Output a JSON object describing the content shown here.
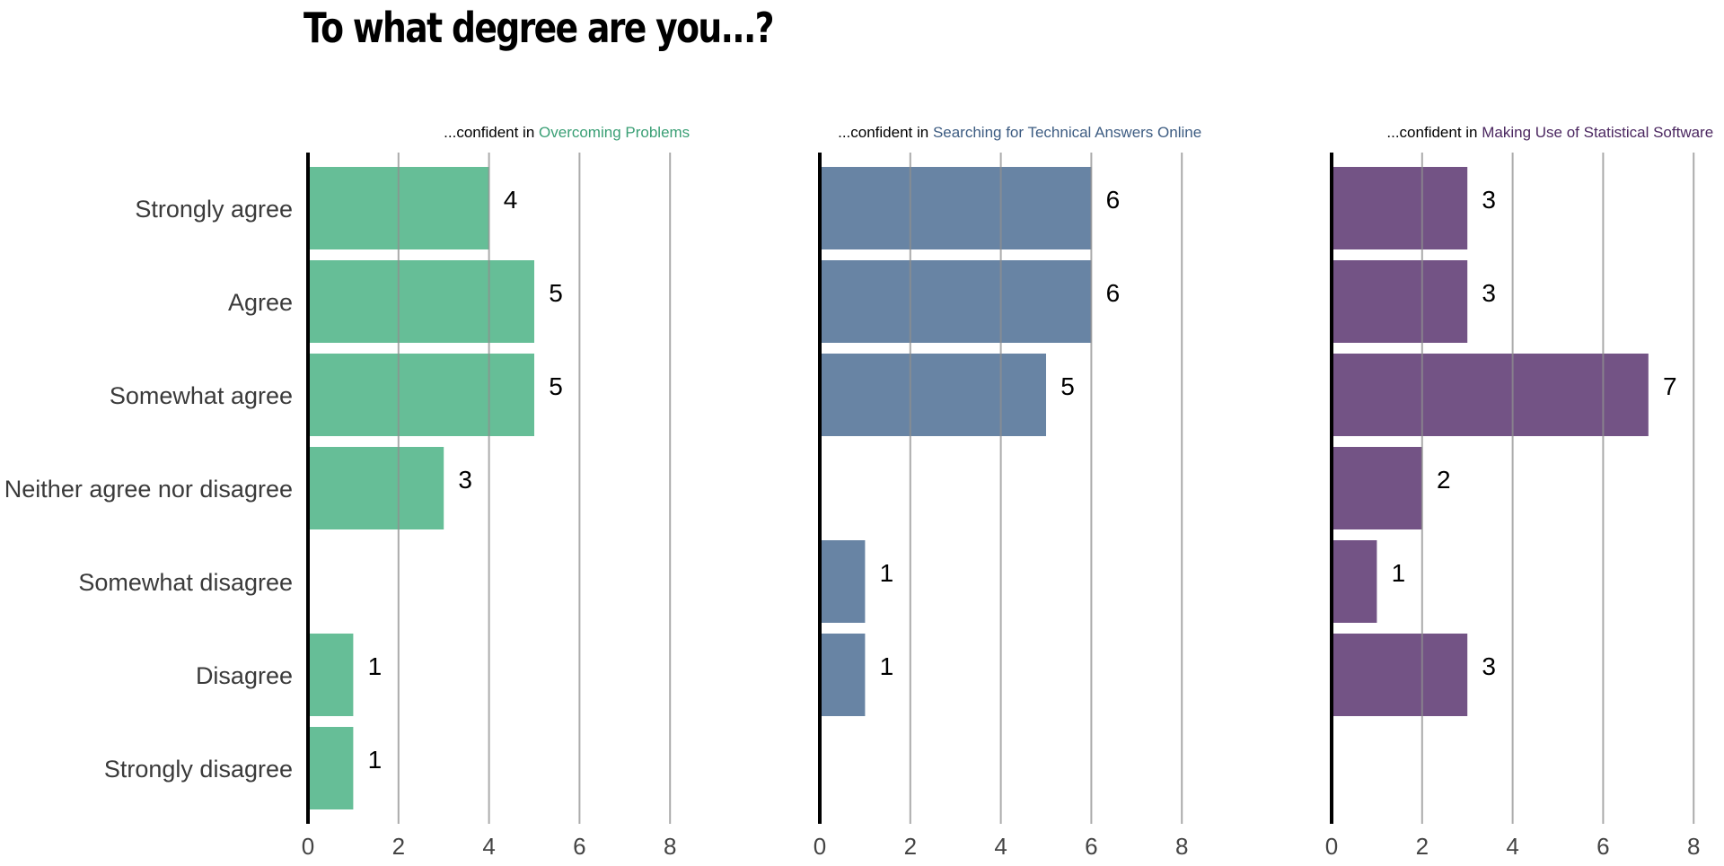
{
  "title": "To what degree are you...?",
  "panel_title_prefix": "...confident in ",
  "chart_data": [
    {
      "type": "bar",
      "orientation": "horizontal",
      "title_highlight": "Overcoming Problems",
      "color": "#66be97",
      "title_color": "#3a9f75",
      "categories": [
        "Strongly agree",
        "Agree",
        "Somewhat agree",
        "Neither agree nor disagree",
        "Somewhat disagree",
        "Disagree",
        "Strongly disagree"
      ],
      "values": [
        4,
        5,
        5,
        3,
        0,
        1,
        1
      ],
      "data_labels": [
        "4",
        "5",
        "5",
        "3",
        "",
        "1",
        "1"
      ],
      "xlim": [
        0,
        8
      ],
      "xticks": [
        0,
        2,
        4,
        6,
        8
      ],
      "grid": true
    },
    {
      "type": "bar",
      "orientation": "horizontal",
      "title_highlight": "Searching for Technical Answers Online",
      "color": "#6884a4",
      "title_color": "#3d5c82",
      "categories": [
        "Strongly agree",
        "Agree",
        "Somewhat agree",
        "Neither agree nor disagree",
        "Somewhat disagree",
        "Disagree",
        "Strongly disagree"
      ],
      "values": [
        6,
        6,
        5,
        0,
        1,
        1,
        0
      ],
      "data_labels": [
        "6",
        "6",
        "5",
        "",
        "1",
        "1",
        ""
      ],
      "xlim": [
        0,
        8
      ],
      "xticks": [
        0,
        2,
        4,
        6,
        8
      ],
      "grid": true
    },
    {
      "type": "bar",
      "orientation": "horizontal",
      "title_highlight": "Making Use of Statistical Software",
      "color": "#735385",
      "title_color": "#4b2760",
      "categories": [
        "Strongly agree",
        "Agree",
        "Somewhat agree",
        "Neither agree nor disagree",
        "Somewhat disagree",
        "Disagree",
        "Strongly disagree"
      ],
      "values": [
        3,
        3,
        7,
        2,
        1,
        3,
        0
      ],
      "data_labels": [
        "3",
        "3",
        "7",
        "2",
        "1",
        "3",
        ""
      ],
      "xlim": [
        0,
        8
      ],
      "xticks": [
        0,
        2,
        4,
        6,
        8
      ],
      "grid": true
    }
  ]
}
